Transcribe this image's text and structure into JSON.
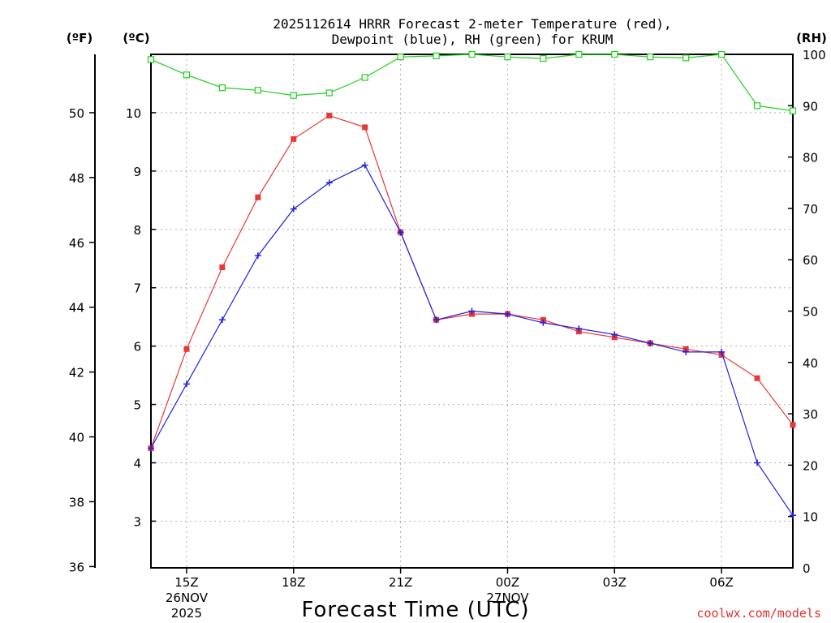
{
  "chart_data": {
    "type": "line",
    "title_line1": "2025112614 HRRR Forecast 2-meter Temperature (red),",
    "title_line2": "Dewpoint (blue), RH (green) for KRUM",
    "xlabel": "Forecast Time (UTC)",
    "credit": "coolwx.com/models",
    "units": {
      "fahrenheit": "(ºF)",
      "celsius": "(ºC)",
      "rh": "(RH)"
    },
    "x_ticks": [
      {
        "hour": 1,
        "label": "15Z",
        "sub1": "26NOV",
        "sub2": "2025"
      },
      {
        "hour": 4,
        "label": "18Z",
        "sub1": "",
        "sub2": ""
      },
      {
        "hour": 7,
        "label": "21Z",
        "sub1": "",
        "sub2": ""
      },
      {
        "hour": 10,
        "label": "00Z",
        "sub1": "27NOV",
        "sub2": ""
      },
      {
        "hour": 13,
        "label": "03Z",
        "sub1": "",
        "sub2": ""
      },
      {
        "hour": 16,
        "label": "06Z",
        "sub1": "",
        "sub2": ""
      }
    ],
    "x_range": [
      0,
      18
    ],
    "celsius_axis": {
      "range": [
        2.2,
        11.0
      ],
      "ticks": [
        3,
        4,
        5,
        6,
        7,
        8,
        9,
        10
      ]
    },
    "fahrenheit_axis": {
      "range": [
        35.96,
        51.8
      ],
      "ticks": [
        36,
        38,
        40,
        42,
        44,
        46,
        48,
        50
      ]
    },
    "rh_axis": {
      "range": [
        0,
        100
      ],
      "ticks": [
        0,
        10,
        20,
        30,
        40,
        50,
        60,
        70,
        80,
        90,
        100
      ]
    },
    "hours": [
      0,
      1,
      2,
      3,
      4,
      5,
      6,
      7,
      8,
      9,
      10,
      11,
      12,
      13,
      14,
      15,
      16,
      17,
      18
    ],
    "series": [
      {
        "name": "Temperature",
        "unit": "C",
        "color": "#e83838",
        "marker": "filled-square",
        "values": [
          4.25,
          5.95,
          7.35,
          8.55,
          9.55,
          9.95,
          9.75,
          7.95,
          6.45,
          6.55,
          6.55,
          6.45,
          6.25,
          6.15,
          6.05,
          5.95,
          5.85,
          5.45,
          4.65
        ]
      },
      {
        "name": "Dewpoint",
        "unit": "C",
        "color": "#2020e0",
        "marker": "plus",
        "values": [
          4.25,
          5.35,
          6.45,
          7.55,
          8.35,
          8.8,
          9.1,
          7.95,
          6.45,
          6.6,
          6.55,
          6.4,
          6.3,
          6.2,
          6.05,
          5.9,
          5.9,
          4.0,
          3.1
        ]
      },
      {
        "name": "RH",
        "unit": "%",
        "color": "#20d020",
        "marker": "open-square",
        "values": [
          99,
          96,
          93.5,
          93,
          92,
          92.5,
          95.5,
          99.5,
          99.7,
          100,
          99.5,
          99.2,
          100,
          100,
          99.5,
          99.3,
          100,
          90,
          89
        ]
      }
    ]
  }
}
